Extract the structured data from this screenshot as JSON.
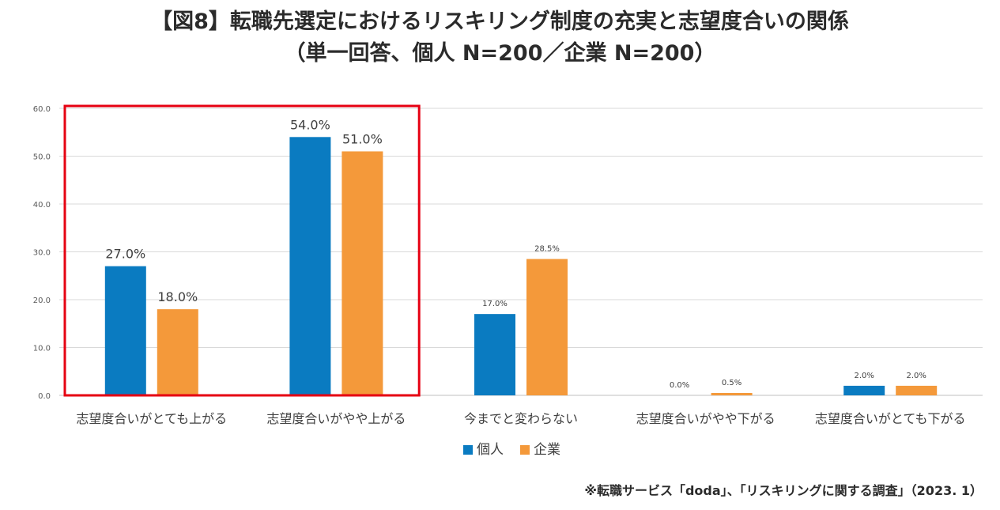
{
  "title": {
    "line1": "【図8】転職先選定におけるリスキリング制度の充実と志望度合いの関係",
    "line2": "（単一回答、個人 N=200／企業 N=200）"
  },
  "source": "※転職サービス「doda」、「リスキリングに関する調査」（2023. 1）",
  "colors": {
    "individual": "#0a7bc1",
    "company": "#f4993a",
    "highlight": "#e60012",
    "grid": "#d9d9d9"
  },
  "chart_data": {
    "type": "bar",
    "title": "【図8】転職先選定におけるリスキリング制度の充実と志望度合いの関係（単一回答、個人 N=200／企業 N=200）",
    "xlabel": "",
    "ylabel": "",
    "ylim": [
      0,
      60
    ],
    "yticks": [
      "0.0",
      "10.0",
      "20.0",
      "30.0",
      "40.0",
      "50.0",
      "60.0"
    ],
    "grid": true,
    "legend_position": "bottom",
    "categories": [
      "志望度合いがとても上がる",
      "志望度合いがやや上がる",
      "今までと変わらない",
      "志望度合いがやや下がる",
      "志望度合いがとても下がる"
    ],
    "series": [
      {
        "name": "個人",
        "values": [
          27.0,
          54.0,
          17.0,
          0.0,
          2.0
        ],
        "labels": [
          "27.0%",
          "54.0%",
          "17.0%",
          "0.0%",
          "2.0%"
        ]
      },
      {
        "name": "企業",
        "values": [
          18.0,
          51.0,
          28.5,
          0.5,
          2.0
        ],
        "labels": [
          "18.0%",
          "51.0%",
          "28.5%",
          "0.5%",
          "2.0%"
        ]
      }
    ],
    "highlighted_categories": [
      "志望度合いがとても上がる",
      "志望度合いがやや上がる"
    ]
  }
}
